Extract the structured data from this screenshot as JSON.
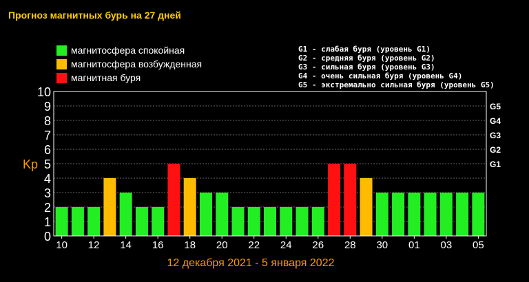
{
  "title": "Прогноз магнитных бурь на 27 дней",
  "legend": [
    {
      "label": "магнитосфера спокойная",
      "color": "#22ee22"
    },
    {
      "label": "магнитосфера возбужденная",
      "color": "#ffbb00"
    },
    {
      "label": "магнитная буря",
      "color": "#ff1111"
    }
  ],
  "g_levels": [
    "G1 - слабая буря (уровень G1)",
    "G2 - средняя буря (уровень G2)",
    "G3 - сильная буря (уровень G3)",
    "G4 - очень сильная буря (уровень G4)",
    "G5 - экстремально сильная буря (уровень G5)"
  ],
  "chart_data": {
    "type": "bar",
    "ylabel": "Kp",
    "xlabel": "12 декабря 2021 - 5 января 2022",
    "ylim": [
      0,
      10
    ],
    "yticks": [
      "0",
      "1",
      "2",
      "3",
      "4",
      "5",
      "6",
      "7",
      "8",
      "9",
      "10"
    ],
    "right_axis_labels": [
      {
        "label": "G1",
        "kp": 5
      },
      {
        "label": "G2",
        "kp": 6
      },
      {
        "label": "G3",
        "kp": 7
      },
      {
        "label": "G4",
        "kp": 8
      },
      {
        "label": "G5",
        "kp": 9
      }
    ],
    "x_tick_labels": [
      "10",
      "12",
      "14",
      "16",
      "18",
      "20",
      "22",
      "24",
      "26",
      "28",
      "30",
      "01",
      "03",
      "05"
    ],
    "colors": {
      "quiet": "#22ee22",
      "active": "#ffbb00",
      "storm": "#ff1111"
    },
    "values": [
      2,
      2,
      2,
      4,
      3,
      2,
      2,
      5,
      4,
      3,
      3,
      2,
      2,
      2,
      2,
      2,
      2,
      5,
      5,
      4,
      3,
      3,
      3,
      3,
      3,
      3,
      3
    ],
    "levels": [
      "quiet",
      "quiet",
      "quiet",
      "active",
      "quiet",
      "quiet",
      "quiet",
      "storm",
      "active",
      "quiet",
      "quiet",
      "quiet",
      "quiet",
      "quiet",
      "quiet",
      "quiet",
      "quiet",
      "storm",
      "storm",
      "active",
      "quiet",
      "quiet",
      "quiet",
      "quiet",
      "quiet",
      "quiet",
      "quiet"
    ],
    "grid": true,
    "grid_color": "#666666",
    "xlabel_color": "#ff9900",
    "ylabel_color": "#ff9900"
  }
}
